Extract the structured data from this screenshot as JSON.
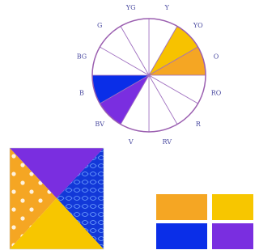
{
  "wheel": {
    "labels": [
      "Y",
      "YO",
      "O",
      "RO",
      "R",
      "RV",
      "V",
      "BV",
      "B",
      "BG",
      "G",
      "YG"
    ]
  }
}
